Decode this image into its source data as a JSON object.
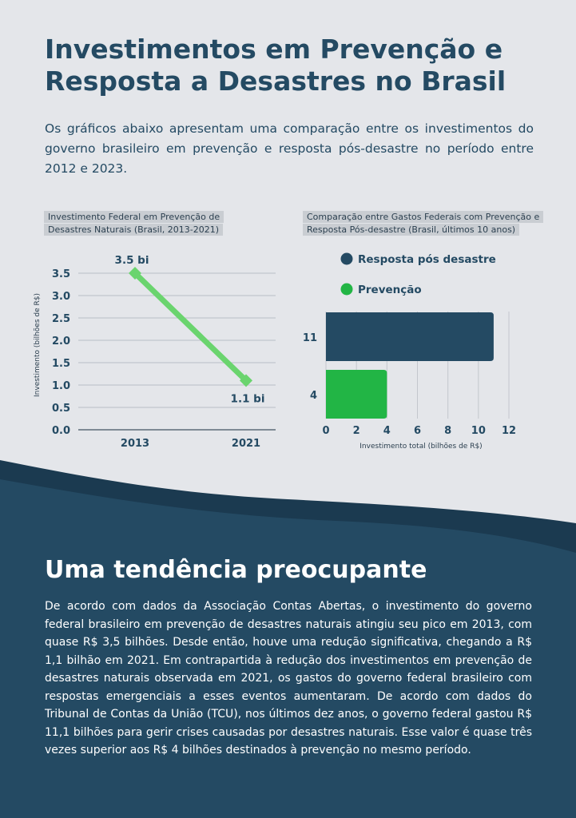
{
  "header": {
    "title": "Investimentos em Prevenção e Resposta a Desastres no Brasil",
    "intro": "Os gráficos abaixo apresentam uma comparação entre os investimentos do governo brasileiro em prevenção e resposta pós-desastre no período entre 2012 e 2023."
  },
  "colors": {
    "background": "#e4e6ea",
    "navy": "#244a63",
    "dark_band": "#1b3a50",
    "green_line": "#6ad46e",
    "green_bar": "#22b545"
  },
  "chart_data": [
    {
      "type": "line",
      "title": "Investimento Federal em Prevenção de Desastres Naturais (Brasil, 2013-2021)",
      "ylabel": "Investimento (bilhões de R$)",
      "xlabel": "",
      "categories": [
        "2013",
        "2021"
      ],
      "values": [
        3.5,
        1.1
      ],
      "data_labels": [
        "3.5 bi",
        "1.1 bi"
      ],
      "ylim": [
        0,
        3.5
      ],
      "yticks": [
        "0.0",
        "0.5",
        "1.0",
        "1.5",
        "2.0",
        "2.5",
        "3.0",
        "3.5"
      ],
      "grid": true,
      "color": "#6ad46e"
    },
    {
      "type": "bar",
      "orientation": "horizontal",
      "title": "Comparação entre Gastos Federais com Prevenção e Resposta Pós-desastre (Brasil, últimos 10 anos)",
      "xlabel": "Investimento total (bilhões de R$)",
      "ylabel": "",
      "categories": [
        "Resposta pós desastre",
        "Prevenção"
      ],
      "values": [
        11,
        4
      ],
      "bar_labels": [
        "11",
        "4"
      ],
      "colors": [
        "#244a63",
        "#22b545"
      ],
      "xlim": [
        0,
        12
      ],
      "xticks": [
        "0",
        "2",
        "4",
        "6",
        "8",
        "10",
        "12"
      ],
      "legend": "top",
      "grid": true
    }
  ],
  "section": {
    "heading": "Uma tendência preocupante",
    "text": "De acordo com dados da Associação Contas Abertas, o investimento do governo federal brasileiro em prevenção de desastres naturais atingiu seu pico em 2013, com quase R$ 3,5 bilhões. Desde então, houve uma redução significativa, chegando a R$ 1,1 bilhão em 2021. Em contrapartida à redução dos investimentos em prevenção de desastres naturais observada em 2021, os gastos do governo federal brasileiro com respostas emergenciais a esses eventos aumentaram. De acordo com dados do Tribunal de Contas da União (TCU), nos últimos dez anos, o governo federal gastou R$ 11,1 bilhões para gerir crises causadas por desastres naturais. Esse valor é quase três vezes superior aos R$ 4 bilhões destinados à prevenção no mesmo período."
  }
}
